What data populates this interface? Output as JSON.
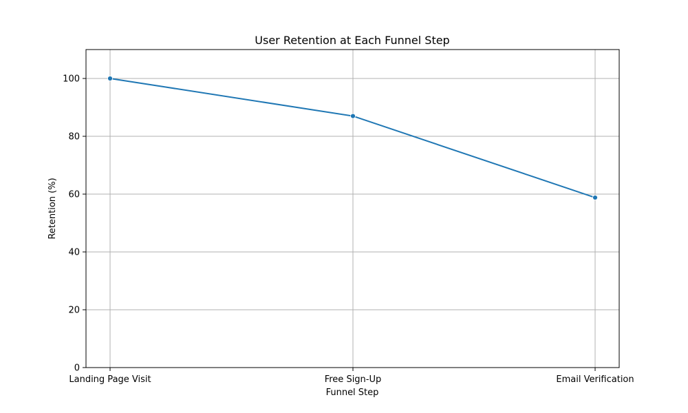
{
  "chart_data": {
    "type": "line",
    "title": "User Retention at Each Funnel Step",
    "xlabel": "Funnel Step",
    "ylabel": "Retention (%)",
    "categories": [
      "Landing Page Visit",
      "Free Sign-Up",
      "Email Verification"
    ],
    "series": [
      {
        "values": [
          100,
          87,
          58.8
        ]
      }
    ],
    "ylim": [
      0,
      110
    ],
    "yticks": [
      "0",
      "20",
      "40",
      "60",
      "80",
      "100"
    ],
    "grid": true,
    "line_color": "#1f77b4",
    "grid_color": "#b0b0b0"
  }
}
